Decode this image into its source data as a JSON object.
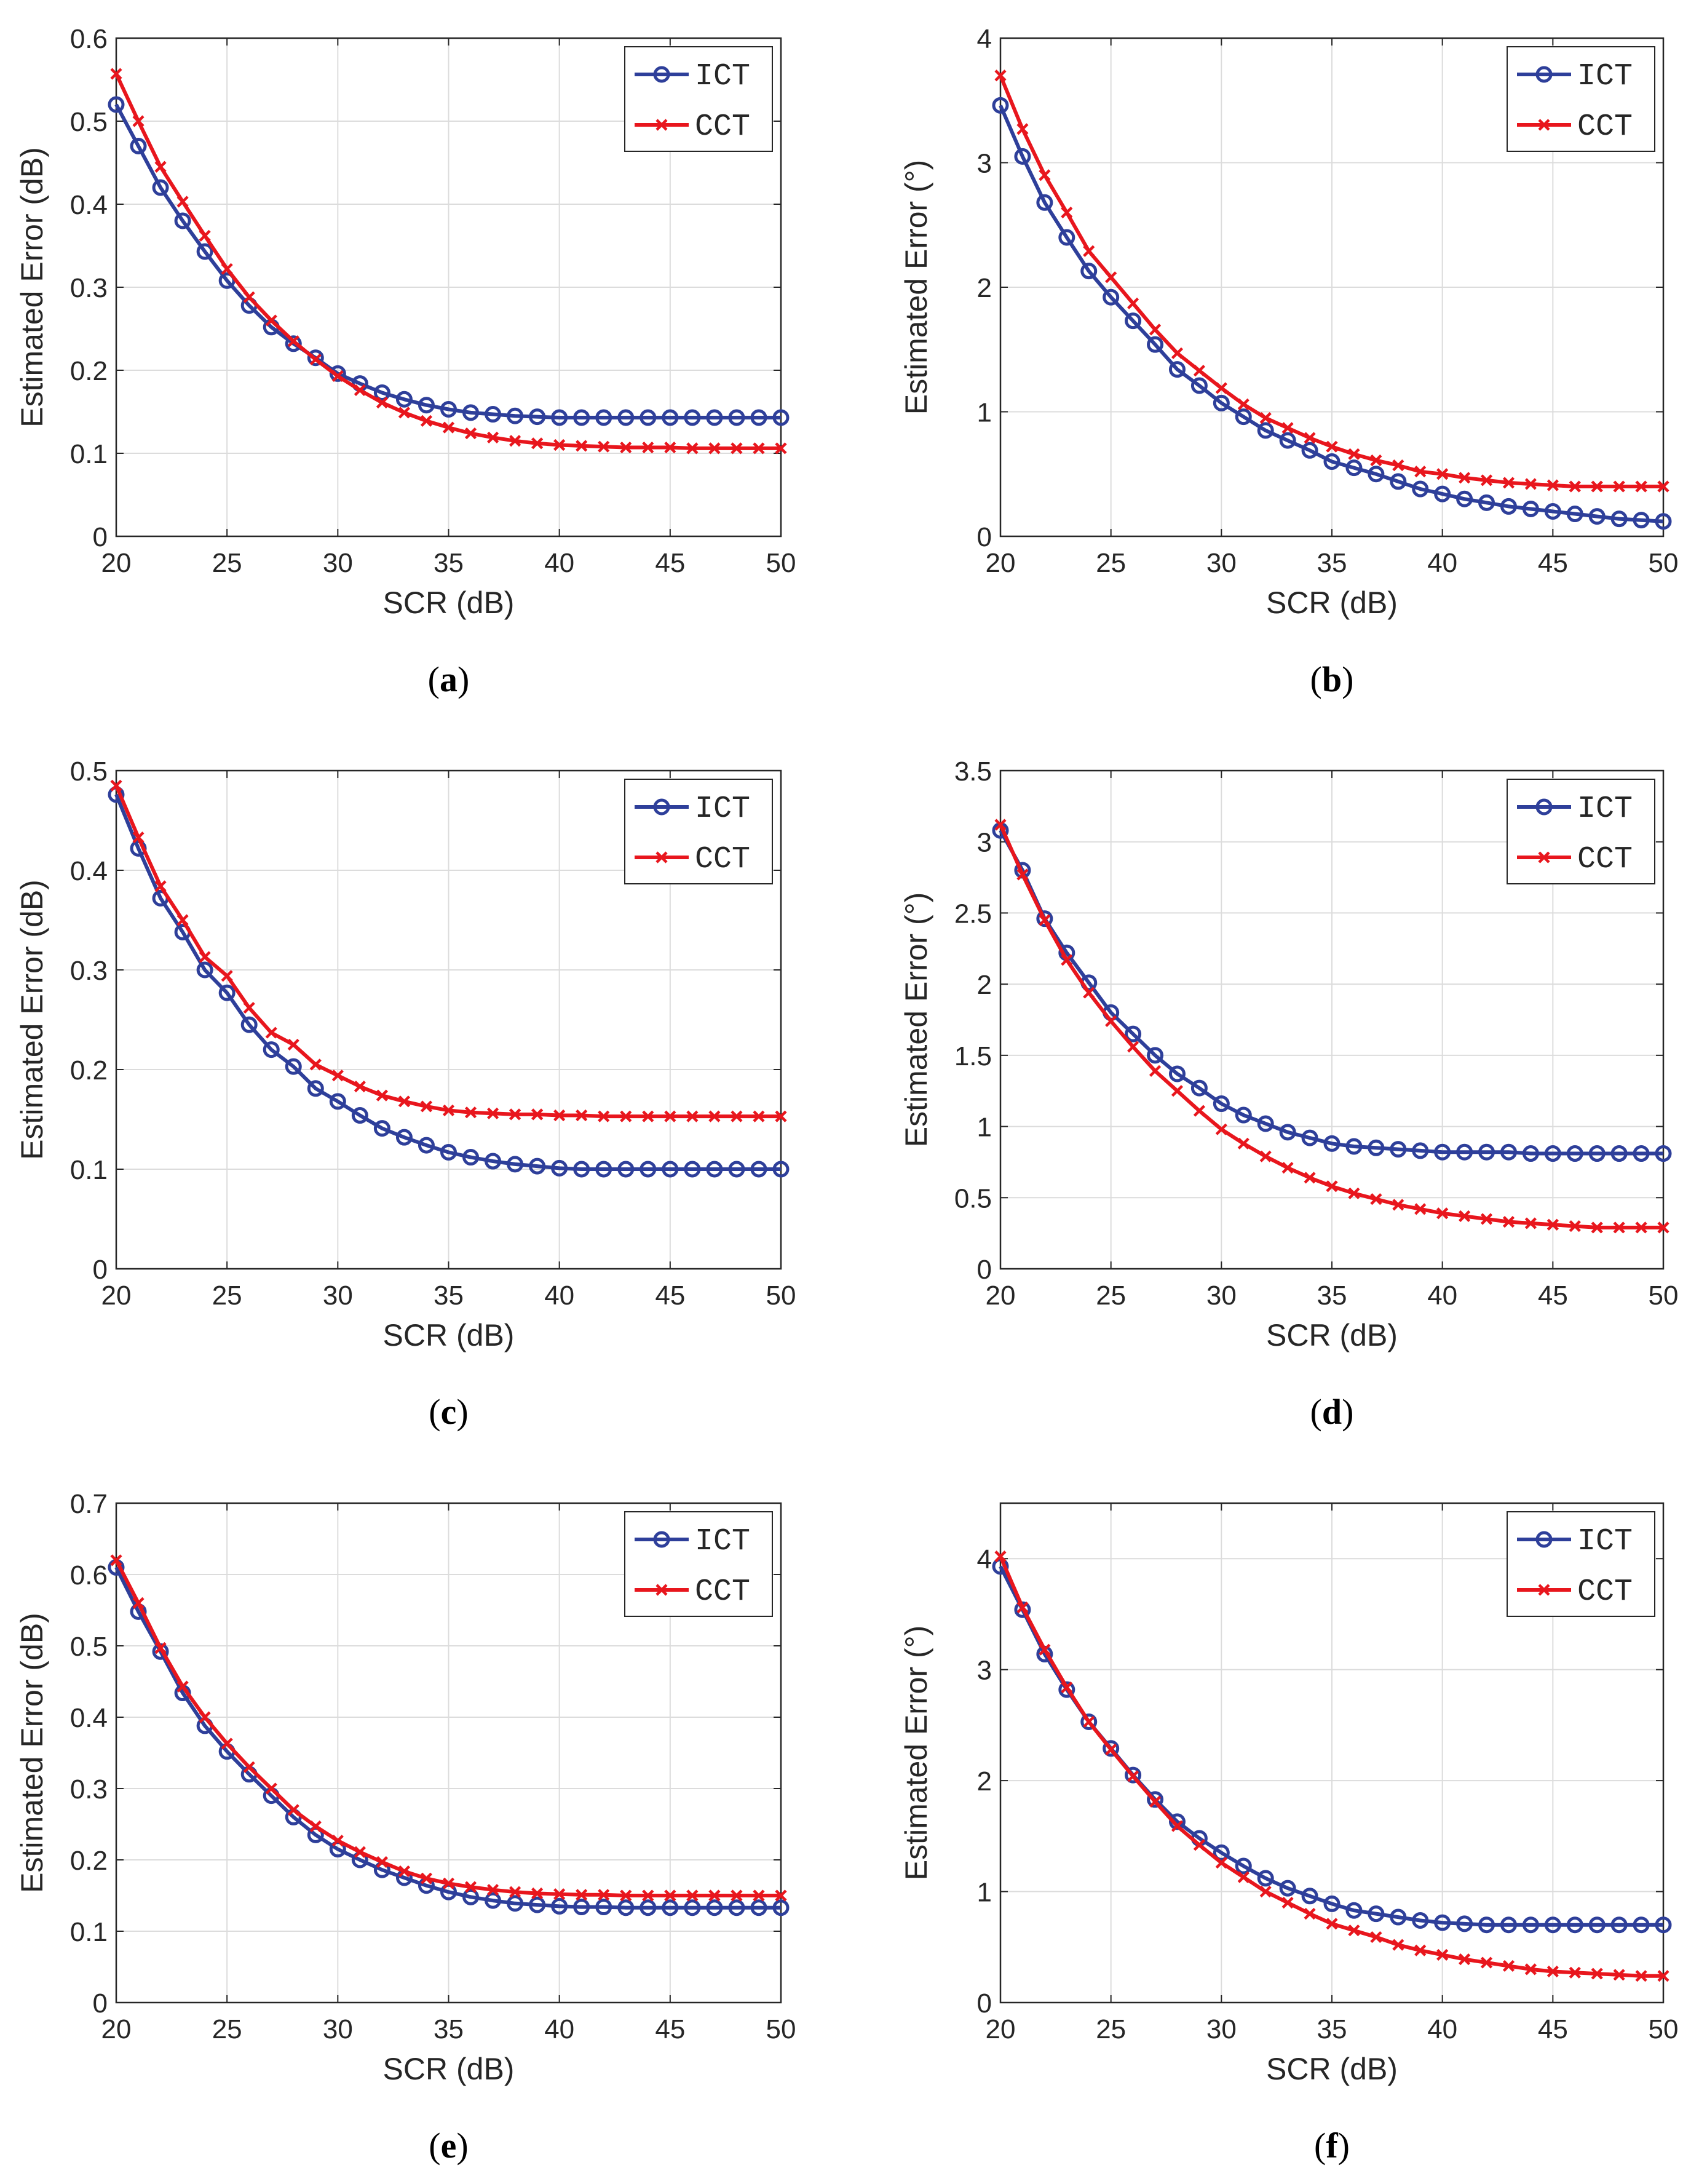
{
  "chart_data": [
    {
      "id": "a",
      "caption": "a",
      "type": "line",
      "xlabel": "SCR (dB)",
      "ylabel": "Estimated Error (dB)",
      "xlim": [
        20,
        50
      ],
      "ylim": [
        0,
        0.6
      ],
      "xticks": [
        "20",
        "25",
        "30",
        "35",
        "40",
        "45",
        "50"
      ],
      "yticks": [
        "0",
        "0.1",
        "0.2",
        "0.3",
        "0.4",
        "0.5",
        "0.6"
      ],
      "grid": true,
      "legend": "top-right",
      "x": [
        20,
        21,
        22,
        23,
        24,
        25,
        26,
        27,
        28,
        29,
        30,
        31,
        32,
        33,
        34,
        35,
        36,
        37,
        38,
        39,
        40,
        41,
        42,
        43,
        44,
        45,
        46,
        47,
        48,
        49,
        50
      ],
      "series": [
        {
          "name": "ICT",
          "color": "#2E3F9A",
          "marker": "circle",
          "values": [
            0.52,
            0.47,
            0.42,
            0.38,
            0.343,
            0.308,
            0.278,
            0.252,
            0.232,
            0.215,
            0.196,
            0.184,
            0.173,
            0.165,
            0.158,
            0.153,
            0.149,
            0.147,
            0.145,
            0.144,
            0.143,
            0.143,
            0.143,
            0.143,
            0.143,
            0.143,
            0.143,
            0.143,
            0.143,
            0.143,
            0.143
          ]
        },
        {
          "name": "CCT",
          "color": "#E8161D",
          "marker": "x",
          "values": [
            0.557,
            0.5,
            0.445,
            0.403,
            0.362,
            0.322,
            0.288,
            0.26,
            0.235,
            0.213,
            0.193,
            0.176,
            0.161,
            0.149,
            0.139,
            0.131,
            0.124,
            0.119,
            0.115,
            0.112,
            0.11,
            0.109,
            0.108,
            0.107,
            0.107,
            0.107,
            0.106,
            0.106,
            0.106,
            0.106,
            0.106
          ]
        }
      ]
    },
    {
      "id": "b",
      "caption": "b",
      "type": "line",
      "xlabel": "SCR (dB)",
      "ylabel": "Estimated Error (°)",
      "xlim": [
        20,
        50
      ],
      "ylim": [
        0,
        4
      ],
      "xticks": [
        "20",
        "25",
        "30",
        "35",
        "40",
        "45",
        "50"
      ],
      "yticks": [
        "0",
        "1",
        "2",
        "3",
        "4"
      ],
      "grid": true,
      "legend": "top-right",
      "x": [
        20,
        21,
        22,
        23,
        24,
        25,
        26,
        27,
        28,
        29,
        30,
        31,
        32,
        33,
        34,
        35,
        36,
        37,
        38,
        39,
        40,
        41,
        42,
        43,
        44,
        45,
        46,
        47,
        48,
        49,
        50
      ],
      "series": [
        {
          "name": "ICT",
          "color": "#2E3F9A",
          "marker": "circle",
          "values": [
            3.46,
            3.05,
            2.68,
            2.4,
            2.13,
            1.92,
            1.73,
            1.54,
            1.34,
            1.21,
            1.07,
            0.96,
            0.85,
            0.77,
            0.69,
            0.6,
            0.55,
            0.5,
            0.44,
            0.38,
            0.34,
            0.3,
            0.27,
            0.24,
            0.22,
            0.2,
            0.18,
            0.16,
            0.14,
            0.13,
            0.12
          ]
        },
        {
          "name": "CCT",
          "color": "#E8161D",
          "marker": "x",
          "values": [
            3.7,
            3.27,
            2.9,
            2.6,
            2.29,
            2.08,
            1.87,
            1.66,
            1.47,
            1.33,
            1.19,
            1.06,
            0.95,
            0.87,
            0.79,
            0.72,
            0.66,
            0.61,
            0.57,
            0.52,
            0.5,
            0.47,
            0.45,
            0.43,
            0.42,
            0.41,
            0.4,
            0.4,
            0.4,
            0.4,
            0.4
          ]
        }
      ]
    },
    {
      "id": "c",
      "caption": "c",
      "type": "line",
      "xlabel": "SCR (dB)",
      "ylabel": "Estimated Error (dB)",
      "xlim": [
        20,
        50
      ],
      "ylim": [
        0,
        0.5
      ],
      "xticks": [
        "20",
        "25",
        "30",
        "35",
        "40",
        "45",
        "50"
      ],
      "yticks": [
        "0",
        "0.1",
        "0.2",
        "0.3",
        "0.4",
        "0.5"
      ],
      "grid": true,
      "legend": "top-right",
      "x": [
        20,
        21,
        22,
        23,
        24,
        25,
        26,
        27,
        28,
        29,
        30,
        31,
        32,
        33,
        34,
        35,
        36,
        37,
        38,
        39,
        40,
        41,
        42,
        43,
        44,
        45,
        46,
        47,
        48,
        49,
        50
      ],
      "series": [
        {
          "name": "ICT",
          "color": "#2E3F9A",
          "marker": "circle",
          "values": [
            0.476,
            0.422,
            0.372,
            0.338,
            0.3,
            0.277,
            0.245,
            0.22,
            0.203,
            0.181,
            0.168,
            0.154,
            0.141,
            0.132,
            0.124,
            0.117,
            0.112,
            0.108,
            0.105,
            0.103,
            0.101,
            0.1,
            0.1,
            0.1,
            0.1,
            0.1,
            0.1,
            0.1,
            0.1,
            0.1,
            0.1
          ]
        },
        {
          "name": "CCT",
          "color": "#E8161D",
          "marker": "x",
          "values": [
            0.485,
            0.433,
            0.384,
            0.35,
            0.313,
            0.294,
            0.262,
            0.237,
            0.225,
            0.205,
            0.194,
            0.183,
            0.174,
            0.168,
            0.163,
            0.159,
            0.157,
            0.156,
            0.155,
            0.155,
            0.154,
            0.154,
            0.153,
            0.153,
            0.153,
            0.153,
            0.153,
            0.153,
            0.153,
            0.153,
            0.153
          ]
        }
      ]
    },
    {
      "id": "d",
      "caption": "d",
      "type": "line",
      "xlabel": "SCR (dB)",
      "ylabel": "Estimated Error (°)",
      "xlim": [
        20,
        50
      ],
      "ylim": [
        0,
        3.5
      ],
      "xticks": [
        "20",
        "25",
        "30",
        "35",
        "40",
        "45",
        "50"
      ],
      "yticks": [
        "0",
        "0.5",
        "1",
        "1.5",
        "2",
        "2.5",
        "3",
        "3.5"
      ],
      "grid": true,
      "legend": "top-right",
      "x": [
        20,
        21,
        22,
        23,
        24,
        25,
        26,
        27,
        28,
        29,
        30,
        31,
        32,
        33,
        34,
        35,
        36,
        37,
        38,
        39,
        40,
        41,
        42,
        43,
        44,
        45,
        46,
        47,
        48,
        49,
        50
      ],
      "series": [
        {
          "name": "ICT",
          "color": "#2E3F9A",
          "marker": "circle",
          "values": [
            3.08,
            2.8,
            2.46,
            2.22,
            2.01,
            1.8,
            1.65,
            1.5,
            1.37,
            1.27,
            1.16,
            1.08,
            1.02,
            0.96,
            0.92,
            0.88,
            0.86,
            0.85,
            0.84,
            0.83,
            0.82,
            0.82,
            0.82,
            0.82,
            0.81,
            0.81,
            0.81,
            0.81,
            0.81,
            0.81,
            0.81
          ]
        },
        {
          "name": "CCT",
          "color": "#E8161D",
          "marker": "x",
          "values": [
            3.12,
            2.77,
            2.45,
            2.17,
            1.94,
            1.74,
            1.56,
            1.39,
            1.25,
            1.11,
            0.98,
            0.88,
            0.79,
            0.71,
            0.64,
            0.58,
            0.53,
            0.49,
            0.45,
            0.42,
            0.39,
            0.37,
            0.35,
            0.33,
            0.32,
            0.31,
            0.3,
            0.29,
            0.29,
            0.29,
            0.29
          ]
        }
      ]
    },
    {
      "id": "e",
      "caption": "e",
      "type": "line",
      "xlabel": "SCR (dB)",
      "ylabel": "Estimated Error (dB)",
      "xlim": [
        20,
        50
      ],
      "ylim": [
        0,
        0.7
      ],
      "xticks": [
        "20",
        "25",
        "30",
        "35",
        "40",
        "45",
        "50"
      ],
      "yticks": [
        "0",
        "0.1",
        "0.2",
        "0.3",
        "0.4",
        "0.5",
        "0.6",
        "0.7"
      ],
      "grid": true,
      "legend": "top-right",
      "x": [
        20,
        21,
        22,
        23,
        24,
        25,
        26,
        27,
        28,
        29,
        30,
        31,
        32,
        33,
        34,
        35,
        36,
        37,
        38,
        39,
        40,
        41,
        42,
        43,
        44,
        45,
        46,
        47,
        48,
        49,
        50
      ],
      "series": [
        {
          "name": "ICT",
          "color": "#2E3F9A",
          "marker": "circle",
          "values": [
            0.61,
            0.548,
            0.492,
            0.434,
            0.388,
            0.352,
            0.32,
            0.29,
            0.26,
            0.235,
            0.215,
            0.2,
            0.186,
            0.175,
            0.164,
            0.155,
            0.148,
            0.143,
            0.139,
            0.137,
            0.135,
            0.134,
            0.134,
            0.133,
            0.133,
            0.133,
            0.133,
            0.133,
            0.133,
            0.133,
            0.133
          ]
        },
        {
          "name": "CCT",
          "color": "#E8161D",
          "marker": "x",
          "values": [
            0.62,
            0.56,
            0.497,
            0.443,
            0.4,
            0.363,
            0.33,
            0.3,
            0.27,
            0.247,
            0.227,
            0.211,
            0.197,
            0.184,
            0.174,
            0.167,
            0.162,
            0.158,
            0.155,
            0.153,
            0.152,
            0.151,
            0.151,
            0.15,
            0.15,
            0.15,
            0.15,
            0.15,
            0.15,
            0.15,
            0.15
          ]
        }
      ]
    },
    {
      "id": "f",
      "caption": "f",
      "type": "line",
      "xlabel": "SCR (dB)",
      "ylabel": "Estimated Error (°)",
      "xlim": [
        20,
        50
      ],
      "ylim": [
        0,
        4.5
      ],
      "xticks": [
        "20",
        "25",
        "30",
        "35",
        "40",
        "45",
        "50"
      ],
      "yticks": [
        "0",
        "1",
        "2",
        "3",
        "4"
      ],
      "grid": true,
      "legend": "top-right",
      "x": [
        20,
        21,
        22,
        23,
        24,
        25,
        26,
        27,
        28,
        29,
        30,
        31,
        32,
        33,
        34,
        35,
        36,
        37,
        38,
        39,
        40,
        41,
        42,
        43,
        44,
        45,
        46,
        47,
        48,
        49,
        50
      ],
      "series": [
        {
          "name": "ICT",
          "color": "#2E3F9A",
          "marker": "circle",
          "values": [
            3.93,
            3.54,
            3.14,
            2.82,
            2.53,
            2.29,
            2.05,
            1.83,
            1.63,
            1.48,
            1.35,
            1.23,
            1.12,
            1.03,
            0.96,
            0.89,
            0.83,
            0.8,
            0.77,
            0.74,
            0.72,
            0.71,
            0.7,
            0.7,
            0.7,
            0.7,
            0.7,
            0.7,
            0.7,
            0.7,
            0.7
          ]
        },
        {
          "name": "CCT",
          "color": "#E8161D",
          "marker": "x",
          "values": [
            4.02,
            3.56,
            3.18,
            2.84,
            2.53,
            2.28,
            2.04,
            1.81,
            1.59,
            1.42,
            1.26,
            1.13,
            1.0,
            0.9,
            0.8,
            0.71,
            0.65,
            0.59,
            0.52,
            0.47,
            0.43,
            0.39,
            0.36,
            0.33,
            0.3,
            0.28,
            0.27,
            0.26,
            0.25,
            0.24,
            0.24
          ]
        }
      ]
    }
  ]
}
